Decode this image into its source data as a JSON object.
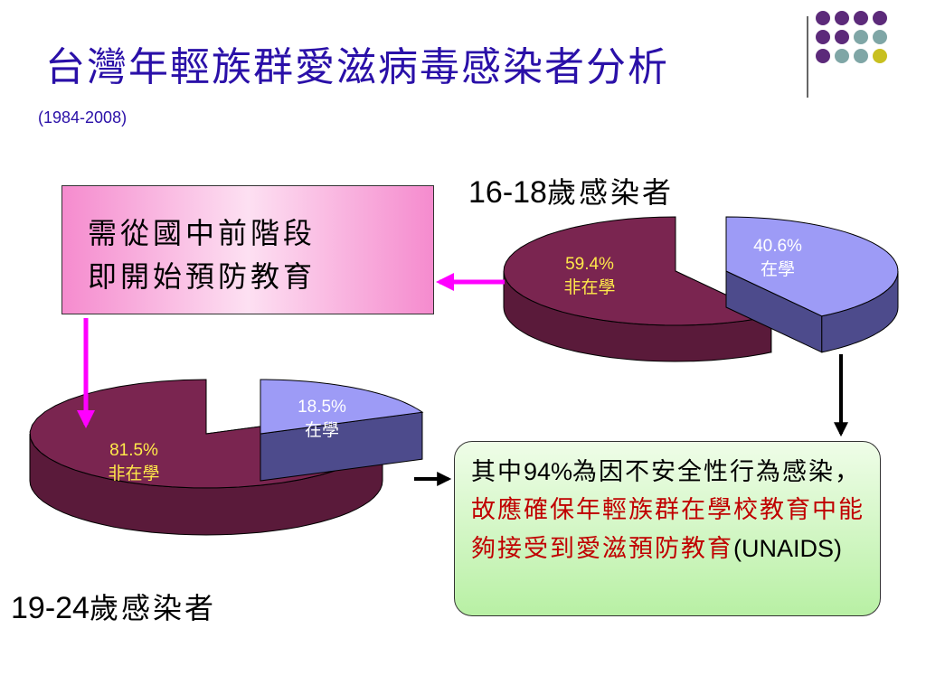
{
  "title": "台灣年輕族群愛滋病毒感染者分析",
  "subtitle": "(1984-2008)",
  "pink_box": {
    "line1": "需從國中前階段",
    "line2": "即開始預防教育"
  },
  "green_box": {
    "part1": "其中",
    "percent": "94%",
    "part2": "為因不安全性行為感染，",
    "red_text": "故應確保年輕族群在學校教育中能夠接受到愛滋預防教育",
    "source": "(UNAIDS)"
  },
  "chart_data": [
    {
      "type": "pie",
      "title_age": "16-18",
      "title_suffix": "歲感染者",
      "slices": [
        {
          "label": "非在學",
          "value": 59.4,
          "display": "59.4%",
          "color": "#7a2550"
        },
        {
          "label": "在學",
          "value": 40.6,
          "display": "40.6%",
          "color": "#9d9bf6"
        }
      ]
    },
    {
      "type": "pie",
      "title_age": "19-24",
      "title_suffix": "歲感染者",
      "slices": [
        {
          "label": "非在學",
          "value": 81.5,
          "display": "81.5%",
          "color": "#7a2550"
        },
        {
          "label": "在學",
          "value": 18.5,
          "display": "18.5%",
          "color": "#9d9bf6"
        }
      ]
    }
  ],
  "colors": {
    "title": "#2a10a8",
    "pie_dark_side": "#5a1a3a",
    "pie_light_side": "#4d4b8c",
    "arrow_magenta": "#ff00ff",
    "dot_purple": "#5c2a7a",
    "dot_teal": "#7fa6a6",
    "dot_yellow": "#c8c020"
  },
  "decor_dots": [
    [
      "dot_purple",
      "dot_purple",
      "dot_purple",
      "dot_purple"
    ],
    [
      "dot_purple",
      "dot_purple",
      "dot_teal",
      "dot_teal"
    ],
    [
      "dot_purple",
      "dot_teal",
      "dot_teal",
      "dot_yellow"
    ]
  ]
}
